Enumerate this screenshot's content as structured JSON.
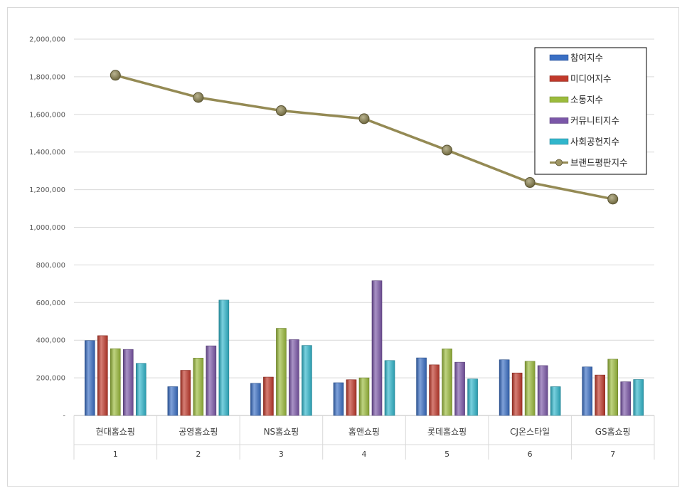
{
  "chart_data": {
    "type": "bar",
    "categories": [
      "현대홈쇼핑",
      "공영홈쇼핑",
      "NS홈쇼핑",
      "홈앤쇼핑",
      "롯데홈쇼핑",
      "CJ온스타일",
      "GS홈쇼핑"
    ],
    "category_index": [
      "1",
      "2",
      "3",
      "4",
      "5",
      "6",
      "7"
    ],
    "ylim": [
      0,
      2000000
    ],
    "yticks": [
      0,
      200000,
      400000,
      600000,
      800000,
      1000000,
      1200000,
      1400000,
      1600000,
      1800000,
      2000000
    ],
    "ytick_labels": [
      "-",
      "200,000",
      "400,000",
      "600,000",
      "800,000",
      "1,000,000",
      "1,200,000",
      "1,400,000",
      "1,600,000",
      "1,800,000",
      "2,000,000"
    ],
    "grid": true,
    "legend_position": "top-right",
    "series": [
      {
        "name": "참여지수",
        "type": "bar",
        "color": "#3a6fc4",
        "values": [
          398000,
          153000,
          171000,
          174000,
          306000,
          296000,
          258000
        ]
      },
      {
        "name": "미디어지수",
        "type": "bar",
        "color": "#c0392b",
        "values": [
          424000,
          240000,
          204000,
          190000,
          269000,
          226000,
          215000
        ]
      },
      {
        "name": "소통지수",
        "type": "bar",
        "color": "#9bbb3c",
        "values": [
          355000,
          305000,
          463000,
          200000,
          354000,
          288000,
          299000
        ]
      },
      {
        "name": "커뮤니티지수",
        "type": "bar",
        "color": "#7b57a8",
        "values": [
          351000,
          370000,
          403000,
          716000,
          283000,
          265000,
          179000
        ]
      },
      {
        "name": "사회공헌지수",
        "type": "bar",
        "color": "#31b6cc",
        "values": [
          277000,
          613000,
          372000,
          292000,
          194000,
          153000,
          191000
        ]
      },
      {
        "name": "브랜드평판지수",
        "type": "line",
        "color": "#948a54",
        "values": [
          1808000,
          1690000,
          1620000,
          1577000,
          1410000,
          1238000,
          1150000
        ]
      }
    ]
  }
}
